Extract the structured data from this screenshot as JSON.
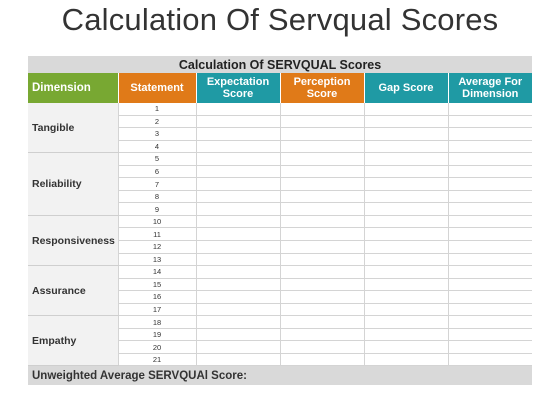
{
  "title": "Calculation Of Servqual Scores",
  "table": {
    "caption": "Calculation Of SERVQUAL Scores",
    "headers": {
      "dimension": "Dimension",
      "statement": "Statement",
      "expectation": "Expectation Score",
      "perception": "Perception Score",
      "gap": "Gap Score",
      "average": "Average For Dimension"
    },
    "colors": {
      "green": "#78a832",
      "orange": "#e07a18",
      "teal": "#1f9aa4",
      "gray": "#d9d9d9"
    },
    "groups": [
      {
        "name": "Tangible",
        "statements": [
          "1",
          "2",
          "3",
          "4"
        ]
      },
      {
        "name": "Reliability",
        "statements": [
          "5",
          "6",
          "7",
          "8",
          "9"
        ]
      },
      {
        "name": "Responsiveness",
        "statements": [
          "10",
          "11",
          "12",
          "13"
        ]
      },
      {
        "name": "Assurance",
        "statements": [
          "14",
          "15",
          "16",
          "17"
        ]
      },
      {
        "name": "Empathy",
        "statements": [
          "18",
          "19",
          "20",
          "21"
        ]
      }
    ],
    "footer": "Unweighted Average SERVQUAl Score:"
  }
}
